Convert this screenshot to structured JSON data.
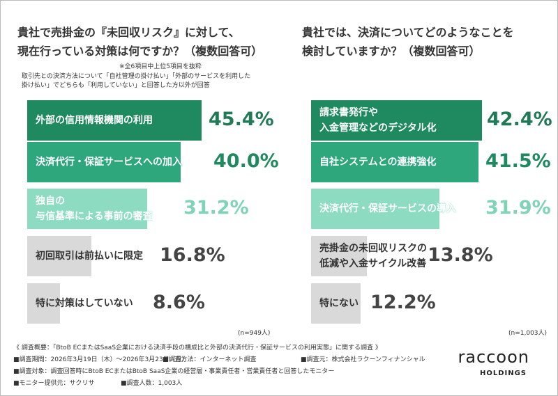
{
  "chart_data": [
    {
      "type": "bar",
      "orientation": "horizontal",
      "title": "貴社で売掛金の『未回収リスク』に対して、\n現在行っている対策は何ですか？（複数回答可）",
      "notes": [
        "※全6項目中上位5項目を抜粋",
        "取引先との決済方法について「自社管理の掛け払い」「外部のサービスを利用した\n掛け払い」でどちらも「利用していない」と回答した方以外が回答"
      ],
      "categories": [
        "外部の信用情報機関の利用",
        "決済代行・保証サービスへの加入",
        "独自の\n与信基準による事前の審査",
        "初回取引は前払いに限定",
        "特に対策はしていない"
      ],
      "values": [
        45.4,
        40.0,
        31.2,
        16.8,
        8.6
      ],
      "value_labels": [
        "45.4%",
        "40.0%",
        "31.2%",
        "16.8%",
        "8.6%"
      ],
      "colors": [
        "#1f8a5f",
        "#2ea77c",
        "#8ddcc1",
        "#d9d9d9",
        "#d9d9d9"
      ],
      "label_colors": [
        "#1f7a55",
        "#1f8a5f",
        "#7fd3b6",
        "#444444",
        "#444444"
      ],
      "sample": "(n=949人)"
    },
    {
      "type": "bar",
      "orientation": "horizontal",
      "title": "貴社では、決済についてどのようなことを\n検討していますか？（複数回答可）",
      "notes": [],
      "categories": [
        "請求書発行や\n入金管理などのデジタル化",
        "自社システムとの連携強化",
        "決済代行・保証サービスの導入",
        "売掛金の未回収リスクの\n低減や入金サイクル改善",
        "特にない"
      ],
      "values": [
        42.4,
        41.5,
        31.9,
        13.8,
        12.2
      ],
      "value_labels": [
        "42.4%",
        "41.5%",
        "31.9%",
        "13.8%",
        "12.2%"
      ],
      "colors": [
        "#1f8a5f",
        "#2ea77c",
        "#8ddcc1",
        "#d9d9d9",
        "#d9d9d9"
      ],
      "label_colors": [
        "#1f7a55",
        "#1f8a5f",
        "#7fd3b6",
        "#444444",
        "#444444"
      ],
      "sample": "(n=1,003人)"
    }
  ],
  "survey": [
    "《 調査概要：「BtoB ECまたはSaaS企業における決済手段の構成比と外部の決済代行・保証サービスの利用実態」に関する調査 》",
    "■調査期間：2026年3月19日（木）～2026年3月23日（月）",
    "■調査方法：インターネット調査",
    "■調査元：株式会社ラクーンフィナンシャル",
    "■調査対象：調査回答時にBtoB ECまたはBtoB SaaS企業の経営層・事業責任者・営業責任者と回答したモニター",
    "■モニター提供元：サクリサ",
    "■調査人数：1,003人"
  ],
  "logo": {
    "name": "raccoon",
    "sub": "HOLDINGS"
  }
}
